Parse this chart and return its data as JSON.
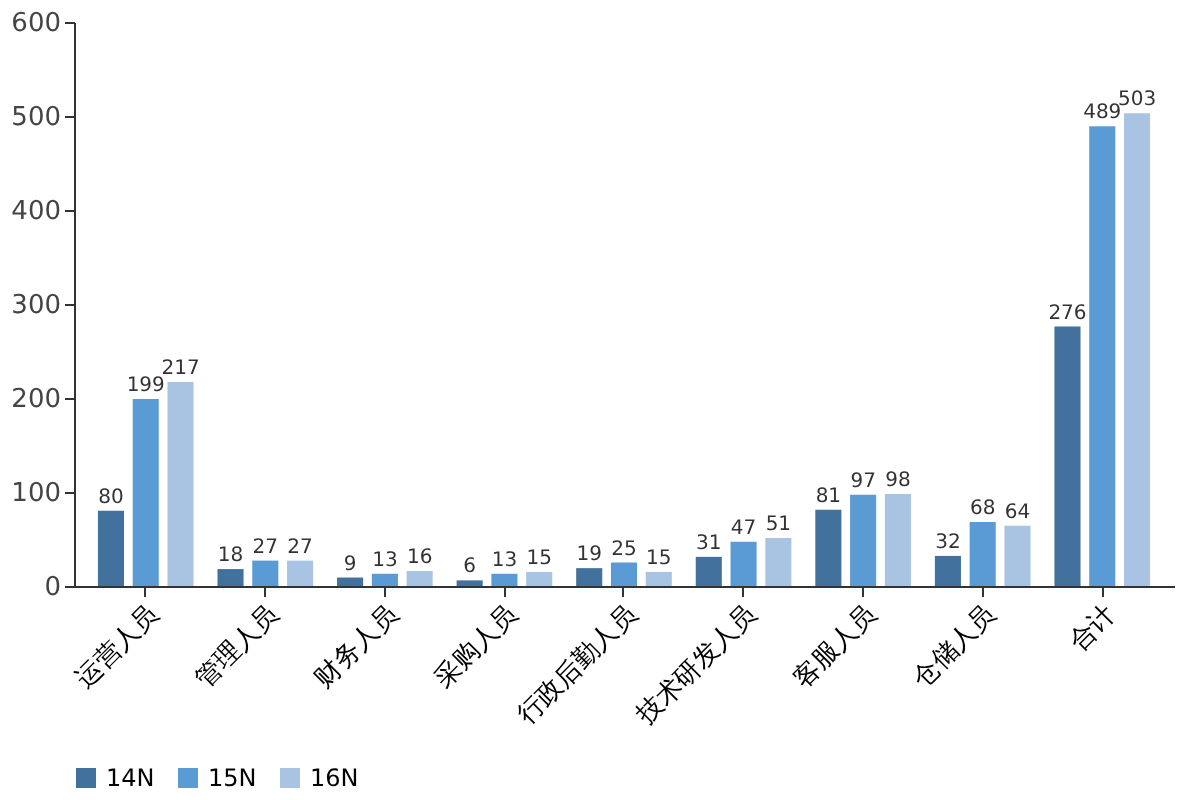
{
  "chart_data": {
    "type": "bar",
    "categories": [
      "运营人员",
      "管理人员",
      "财务人员",
      "采购人员",
      "行政后勤人员",
      "技术研发人员",
      "客服人员",
      "仓储人员",
      "合计"
    ],
    "series": [
      {
        "name": "14N",
        "color": "#41719c",
        "values": [
          80,
          18,
          9,
          6,
          19,
          31,
          81,
          32,
          276
        ]
      },
      {
        "name": "15N",
        "color": "#5b9bd5",
        "values": [
          199,
          27,
          13,
          13,
          25,
          47,
          97,
          68,
          489
        ]
      },
      {
        "name": "16N",
        "color": "#a9c4e2",
        "values": [
          217,
          27,
          16,
          15,
          15,
          51,
          98,
          64,
          503
        ]
      }
    ],
    "ylim": [
      0,
      600
    ],
    "yticks": [
      0,
      100,
      200,
      300,
      400,
      500,
      600
    ],
    "grid": false,
    "legend": "bottom",
    "data_labels": true
  }
}
